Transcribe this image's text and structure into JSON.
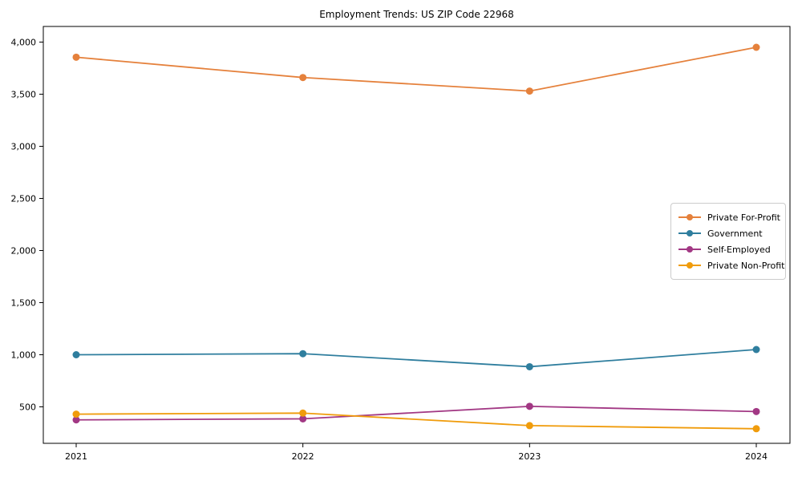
{
  "chart_data": {
    "type": "line",
    "title": "Employment Trends: US ZIP Code 22968",
    "categories": [
      "2021",
      "2022",
      "2023",
      "2024"
    ],
    "series": [
      {
        "name": "Private For-Profit",
        "color": "#E5813C",
        "values": [
          3855,
          3660,
          3530,
          3950
        ]
      },
      {
        "name": "Government",
        "color": "#2F7E9E",
        "values": [
          1000,
          1010,
          885,
          1050
        ]
      },
      {
        "name": "Self-Employed",
        "color": "#A23884",
        "values": [
          375,
          385,
          505,
          455
        ]
      },
      {
        "name": "Private Non-Profit",
        "color": "#F09C0C",
        "values": [
          430,
          440,
          320,
          290
        ]
      }
    ],
    "xlabel": "",
    "ylabel": "",
    "ylim": [
      150,
      4150
    ],
    "yticks": [
      500,
      1000,
      1500,
      2000,
      2500,
      3000,
      3500,
      4000
    ],
    "grid": false,
    "legend_position": "center-right",
    "axis_color": "#000000",
    "background_color": "#ffffff"
  }
}
